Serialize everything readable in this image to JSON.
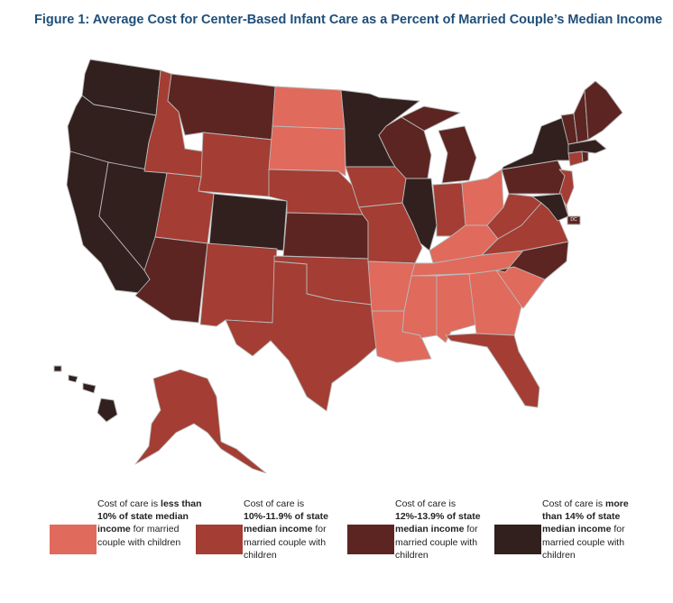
{
  "title": "Figure 1: Average Cost for Center-Based Infant Care as a Percent of Married Couple’s Median Income",
  "colors": {
    "lt10": "#e06a5c",
    "c10_12": "#a43d33",
    "c12_14": "#5c2522",
    "gt14": "#32201e"
  },
  "dc_label": "DC",
  "legend": [
    {
      "category": "lt10",
      "prefix": "Cost of care is ",
      "bold": "less than 10% of state median income",
      "suffix": " for married couple with children"
    },
    {
      "category": "c10_12",
      "prefix": "Cost of care is ",
      "bold": "10%-11.9% of state median income",
      "suffix": " for married couple with children"
    },
    {
      "category": "c12_14",
      "prefix": "Cost of care is ",
      "bold": "12%-13.9% of state median income",
      "suffix": " for married couple with children"
    },
    {
      "category": "gt14",
      "prefix": "Cost of care is ",
      "bold": "more than 14% of state median income",
      "suffix": " for married couple with children"
    }
  ],
  "states": {
    "WA": "gt14",
    "OR": "gt14",
    "CA": "gt14",
    "NV": "gt14",
    "CO": "gt14",
    "MN": "gt14",
    "IL": "gt14",
    "NY": "gt14",
    "MA": "gt14",
    "MD": "gt14",
    "HI": "gt14",
    "MT": "c12_14",
    "WY": "c10_12",
    "ID": "c10_12",
    "UT": "c10_12",
    "AZ": "c12_14",
    "NM": "c10_12",
    "TX": "c10_12",
    "OK": "c10_12",
    "KS": "c12_14",
    "NE": "c10_12",
    "ND": "lt10",
    "SD": "lt10",
    "IA": "c10_12",
    "MO": "c10_12",
    "AR": "lt10",
    "LA": "lt10",
    "WI": "c12_14",
    "MI": "c12_14",
    "IN": "c10_12",
    "OH": "lt10",
    "KY": "lt10",
    "TN": "lt10",
    "MS": "lt10",
    "AL": "lt10",
    "GA": "lt10",
    "FL": "c10_12",
    "SC": "lt10",
    "NC": "c12_14",
    "VA": "c10_12",
    "WV": "c10_12",
    "PA": "c12_14",
    "NJ": "c10_12",
    "DE": "lt10",
    "CT": "c10_12",
    "RI": "c12_14",
    "VT": "c12_14",
    "NH": "c12_14",
    "ME": "c12_14",
    "AK": "c10_12",
    "DC": "c12_14"
  }
}
